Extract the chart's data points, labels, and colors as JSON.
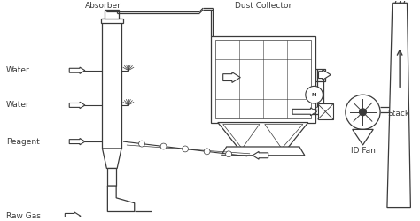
{
  "bg_color": "#ffffff",
  "line_color": "#3a3a3a",
  "figsize": [
    4.74,
    2.5
  ],
  "dpi": 100,
  "labels": {
    "absorber": [
      0.175,
      0.965,
      "Absorber"
    ],
    "dust_collector": [
      0.47,
      0.965,
      "Dust Collector"
    ],
    "water1": [
      0.005,
      0.64,
      "Water"
    ],
    "water2": [
      0.005,
      0.46,
      "Water"
    ],
    "reagent": [
      0.005,
      0.39,
      "Reagent"
    ],
    "raw_gas": [
      0.005,
      0.075,
      "Raw Gas"
    ],
    "id_fan": [
      0.755,
      0.065,
      "ID Fan"
    ],
    "stack": [
      0.925,
      0.46,
      "Stack"
    ]
  }
}
